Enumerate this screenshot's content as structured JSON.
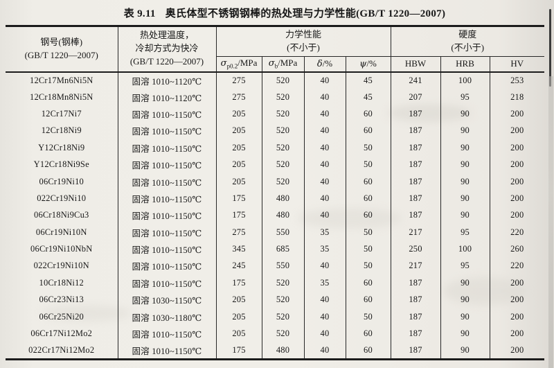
{
  "page": {
    "title_prefix": "表 9.11",
    "title_text": "奥氏体型不锈钢钢棒的热处理与力学性能(GB/T 1220—2007)"
  },
  "colors": {
    "paper": "#efede7",
    "ink": "#171717",
    "line": "#1b1b1b"
  },
  "table": {
    "header": {
      "steel_grade_line1": "钢号(钢棒)",
      "steel_grade_line2": "(GB/T 1220—2007)",
      "heat_line1": "热处理温度，",
      "heat_line2": "冷却方式为快冷",
      "heat_line3": "(GB/T 1220—2007)",
      "mech_group_line1": "力学性能",
      "mech_group_line2": "(不小于)",
      "hard_group_line1": "硬度",
      "hard_group_line2": "(不小于)",
      "mech_cols": [
        {
          "sym": "σ",
          "sub": "p0.2",
          "unit": "/MPa"
        },
        {
          "sym": "σ",
          "sub": "b",
          "unit": "/MPa"
        },
        {
          "sym": "δ",
          "sub": "",
          "unit": "/%"
        },
        {
          "sym": "ψ",
          "sub": "",
          "unit": "/%"
        }
      ],
      "hardness_cols": [
        "HBW",
        "HRB",
        "HV"
      ]
    },
    "rows": [
      [
        "12Cr17Mn6Ni5N",
        "固溶 1010~1120℃",
        "275",
        "520",
        "40",
        "45",
        "241",
        "100",
        "253"
      ],
      [
        "12Cr18Mn8Ni5N",
        "固溶 1010~1120℃",
        "275",
        "520",
        "40",
        "45",
        "207",
        "95",
        "218"
      ],
      [
        "12Cr17Ni7",
        "固溶 1010~1150℃",
        "205",
        "520",
        "40",
        "60",
        "187",
        "90",
        "200"
      ],
      [
        "12Cr18Ni9",
        "固溶 1010~1150℃",
        "205",
        "520",
        "40",
        "60",
        "187",
        "90",
        "200"
      ],
      [
        "Y12Cr18Ni9",
        "固溶 1010~1150℃",
        "205",
        "520",
        "40",
        "50",
        "187",
        "90",
        "200"
      ],
      [
        "Y12Cr18Ni9Se",
        "固溶 1010~1150℃",
        "205",
        "520",
        "40",
        "50",
        "187",
        "90",
        "200"
      ],
      [
        "06Cr19Ni10",
        "固溶 1010~1150℃",
        "205",
        "520",
        "40",
        "60",
        "187",
        "90",
        "200"
      ],
      [
        "022Cr19Ni10",
        "固溶 1010~1150℃",
        "175",
        "480",
        "40",
        "60",
        "187",
        "90",
        "200"
      ],
      [
        "06Cr18Ni9Cu3",
        "固溶 1010~1150℃",
        "175",
        "480",
        "40",
        "60",
        "187",
        "90",
        "200"
      ],
      [
        "06Cr19Ni10N",
        "固溶 1010~1150℃",
        "275",
        "550",
        "35",
        "50",
        "217",
        "95",
        "220"
      ],
      [
        "06Cr19Ni10NbN",
        "固溶 1010~1150℃",
        "345",
        "685",
        "35",
        "50",
        "250",
        "100",
        "260"
      ],
      [
        "022Cr19Ni10N",
        "固溶 1010~1150℃",
        "245",
        "550",
        "40",
        "50",
        "217",
        "95",
        "220"
      ],
      [
        "10Cr18Ni12",
        "固溶 1010~1150℃",
        "175",
        "520",
        "35",
        "60",
        "187",
        "90",
        "200"
      ],
      [
        "06Cr23Ni13",
        "固溶 1030~1150℃",
        "205",
        "520",
        "40",
        "60",
        "187",
        "90",
        "200"
      ],
      [
        "06Cr25Ni20",
        "固溶 1030~1180℃",
        "205",
        "520",
        "40",
        "50",
        "187",
        "90",
        "200"
      ],
      [
        "06Cr17Ni12Mo2",
        "固溶 1010~1150℃",
        "205",
        "520",
        "40",
        "60",
        "187",
        "90",
        "200"
      ],
      [
        "022Cr17Ni12Mo2",
        "固溶 1010~1150℃",
        "175",
        "480",
        "40",
        "60",
        "187",
        "90",
        "200"
      ]
    ],
    "cell_names": [
      "steel-grade-cell",
      "heat-treatment-cell",
      "sigma-p02-cell",
      "sigma-b-cell",
      "delta-cell",
      "psi-cell",
      "hbw-cell",
      "hrb-cell",
      "hv-cell"
    ]
  }
}
